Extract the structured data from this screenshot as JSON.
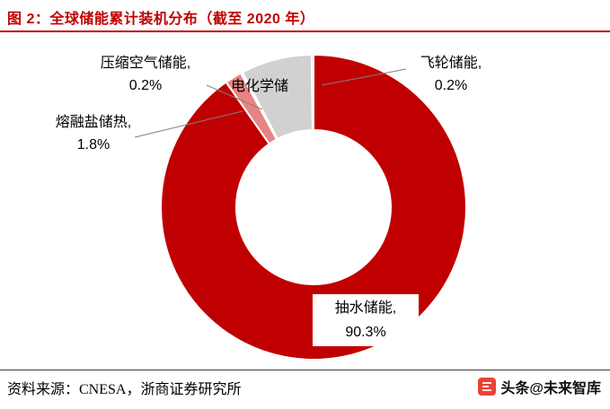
{
  "header": {
    "title": "图 2：全球储能累计装机分布（截至 2020 年）"
  },
  "chart_data": {
    "type": "pie",
    "subtype": "donut",
    "title": "全球储能累计装机分布（截至 2020 年）",
    "start_angle": "12-o-clock, clockwise",
    "inner_radius_ratio": 0.51,
    "slices": [
      {
        "name": "抽水储能",
        "value": 90.3,
        "color": "#c00000"
      },
      {
        "name": "熔融盐储热",
        "value": 1.8,
        "color": "#e88383"
      },
      {
        "name": "压缩空气储能",
        "value": 0.2,
        "color": "#f5b8b8"
      },
      {
        "name": "电化学储能",
        "value": 7.5,
        "color": "#d2d0d0"
      },
      {
        "name": "飞轮储能",
        "value": 0.2,
        "color": "#f0d9d9"
      }
    ]
  },
  "callouts": {
    "flywheel": {
      "line1": "飞轮储能,",
      "line2": "0.2%"
    },
    "compressed_air": {
      "line1": "压缩空气储能,",
      "line2": "0.2%"
    },
    "molten_salt": {
      "line1": "熔融盐储热,",
      "line2": "1.8%"
    },
    "electrochemical": {
      "line1": "电化学储"
    },
    "pumped_hydro": {
      "line1": "抽水储能,",
      "line2": "90.3%"
    }
  },
  "footer": {
    "source": "资料来源：CNESA，浙商证券研究所",
    "watermark": "头条@未来智库"
  },
  "colors": {
    "accent_red": "#c00000",
    "leader_gray": "#808080",
    "rule_dark": "#3a3a3a"
  }
}
